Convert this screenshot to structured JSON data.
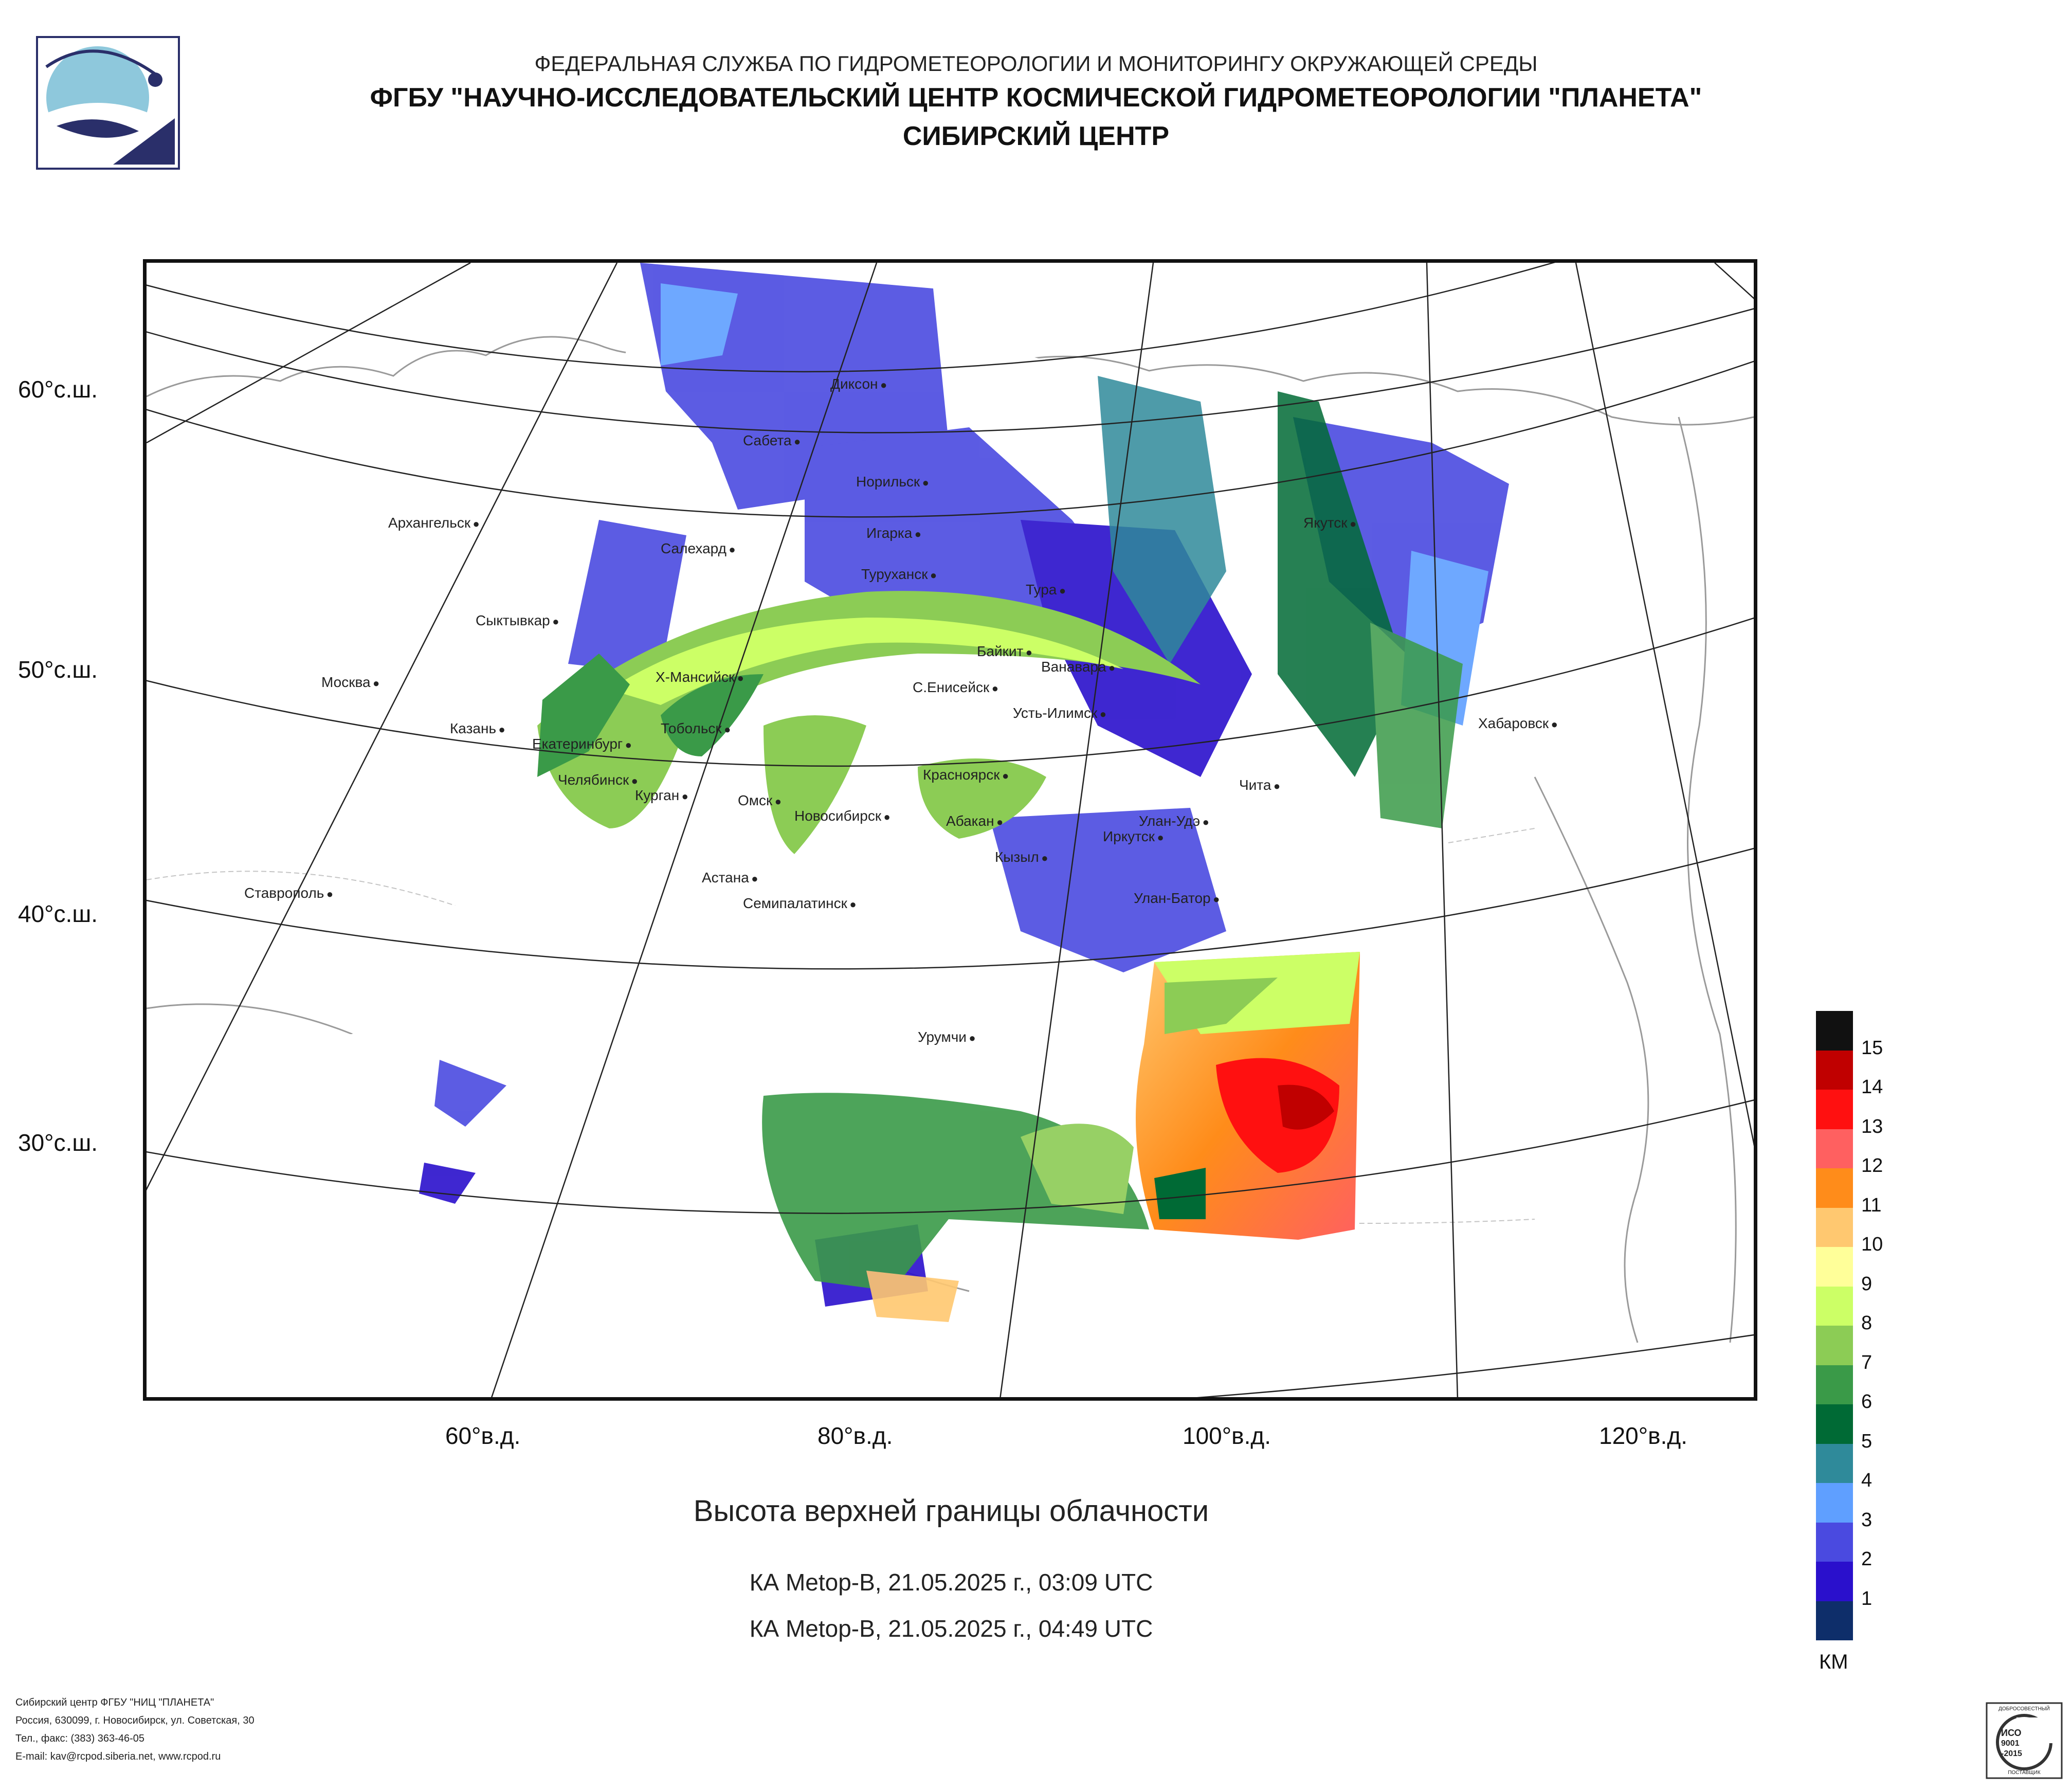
{
  "header": {
    "agency": "ФЕДЕРАЛЬНАЯ СЛУЖБА ПО ГИДРОМЕТЕОРОЛОГИИ И МОНИТОРИНГУ ОКРУЖАЮЩЕЙ СРЕДЫ",
    "institute": "ФГБУ \"НАУЧНО-ИССЛЕДОВАТЕЛЬСКИЙ ЦЕНТР КОСМИЧЕСКОЙ ГИДРОМЕТЕОРОЛОГИИ \"ПЛАНЕТА\"",
    "center": "СИБИРСКИЙ ЦЕНТР"
  },
  "latitude_labels": [
    "60°с.ш.",
    "50°с.ш.",
    "40°с.ш.",
    "30°с.ш."
  ],
  "longitude_labels": [
    "60°в.д.",
    "80°в.д.",
    "100°в.д.",
    "120°в.д."
  ],
  "cities": [
    {
      "name": "Диксон"
    },
    {
      "name": "Сабета"
    },
    {
      "name": "Норильск"
    },
    {
      "name": "Игарка"
    },
    {
      "name": "Архангельск"
    },
    {
      "name": "Салехард"
    },
    {
      "name": "Туруханск"
    },
    {
      "name": "Тура"
    },
    {
      "name": "Якутск"
    },
    {
      "name": "Сыктывкар"
    },
    {
      "name": "Байкит"
    },
    {
      "name": "Ванавара"
    },
    {
      "name": "Москва"
    },
    {
      "name": "Х-Мансийск"
    },
    {
      "name": "С.Енисейск"
    },
    {
      "name": "Усть-Илимск"
    },
    {
      "name": "Хабаровск"
    },
    {
      "name": "Казань"
    },
    {
      "name": "Тобольск"
    },
    {
      "name": "Екатеринбург"
    },
    {
      "name": "Красноярск"
    },
    {
      "name": "Челябинск"
    },
    {
      "name": "Курган"
    },
    {
      "name": "Чита"
    },
    {
      "name": "Омск"
    },
    {
      "name": "Новосибирск"
    },
    {
      "name": "Абакан"
    },
    {
      "name": "Улан-Удэ"
    },
    {
      "name": "Иркутск"
    },
    {
      "name": "Кызыл"
    },
    {
      "name": "Астана"
    },
    {
      "name": "Ставрополь"
    },
    {
      "name": "Семипалатинск"
    },
    {
      "name": "Улан-Батор"
    },
    {
      "name": "Урумчи"
    }
  ],
  "product_title": "Высота верхней границы облачности",
  "passes": [
    "КА Metop-B, 21.05.2025 г., 03:09 UTC",
    "КА Metop-B, 21.05.2025 г., 04:49 UTC"
  ],
  "legend": {
    "unit": "КМ",
    "levels": [
      {
        "label": "15",
        "color": "#111111"
      },
      {
        "label": "14",
        "color": "#c00000"
      },
      {
        "label": "13",
        "color": "#ff1010"
      },
      {
        "label": "12",
        "color": "#ff6060"
      },
      {
        "label": "11",
        "color": "#ff8c1a"
      },
      {
        "label": "10",
        "color": "#ffc870"
      },
      {
        "label": "9",
        "color": "#ffff99"
      },
      {
        "label": "8",
        "color": "#ccff66"
      },
      {
        "label": "7",
        "color": "#8ccc55"
      },
      {
        "label": "6",
        "color": "#3a9a48"
      },
      {
        "label": "5",
        "color": "#006a35"
      },
      {
        "label": "4",
        "color": "#2f8a9a"
      },
      {
        "label": "3",
        "color": "#5f9fff"
      },
      {
        "label": "2",
        "color": "#4a4ae0"
      },
      {
        "label": "1",
        "color": "#2a10cc"
      },
      {
        "label": "",
        "color": "#0e2e6a"
      }
    ]
  },
  "footer": {
    "line1": "Сибирский центр ФГБУ \"НИЦ \"ПЛАНЕТА\"",
    "line2": "Россия, 630099, г. Новосибирск, ул. Советская, 30",
    "line3": "Тел., факс: (383) 363-46-05",
    "line4": "E-mail: kav@rcpod.siberia.net, www.rcpod.ru"
  },
  "certificate": {
    "top": "ДОБРОСОВЕСТНЫЙ",
    "mid1": "ИСО",
    "mid2": "9001",
    "mid3": "-2015",
    "bottom": "ПОСТАВЩИК"
  }
}
